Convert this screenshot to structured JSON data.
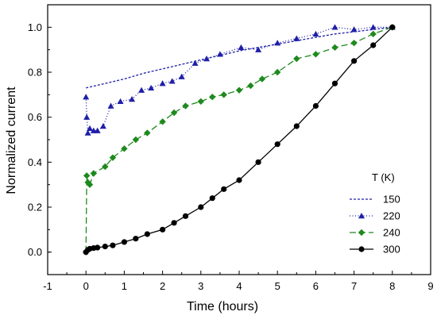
{
  "chart_data": {
    "type": "line",
    "xlabel": "Time (hours)",
    "ylabel": "Normalized current",
    "xlim": [
      -1,
      9
    ],
    "ylim": [
      -0.1,
      1.1
    ],
    "x_ticks": [
      -1,
      0,
      1,
      2,
      3,
      4,
      5,
      6,
      7,
      8,
      9
    ],
    "y_ticks": [
      0.0,
      0.2,
      0.4,
      0.6,
      0.8,
      1.0
    ],
    "y_tick_labels": [
      "0.0",
      "0.2",
      "0.4",
      "0.6",
      "0.8",
      "1.0"
    ],
    "legend_title": "T (K)",
    "legend_position": "lower-right",
    "grid": false,
    "series": [
      {
        "name": "150",
        "color": "#1f1fa8",
        "marker": "none",
        "line_style": "short-dash",
        "x": [
          0,
          0.5,
          1,
          1.5,
          2,
          2.5,
          3,
          3.5,
          4,
          4.5,
          5,
          5.5,
          6,
          6.5,
          7,
          7.5,
          8
        ],
        "y": [
          0.73,
          0.75,
          0.77,
          0.795,
          0.815,
          0.835,
          0.855,
          0.875,
          0.895,
          0.91,
          0.925,
          0.94,
          0.955,
          0.97,
          0.98,
          0.99,
          1.0
        ]
      },
      {
        "name": "220",
        "color": "#1f1fa8",
        "marker": "triangle",
        "line_style": "dot",
        "x": [
          0,
          0.02,
          0.05,
          0.1,
          0.2,
          0.3,
          0.45,
          0.65,
          0.9,
          1.2,
          1.45,
          1.7,
          2.0,
          2.25,
          2.5,
          2.85,
          3.15,
          3.5,
          4.05,
          4.5,
          5.0,
          5.5,
          6.0,
          6.5,
          7.0,
          7.5,
          8.0
        ],
        "y": [
          0.69,
          0.6,
          0.53,
          0.55,
          0.54,
          0.54,
          0.56,
          0.65,
          0.67,
          0.68,
          0.72,
          0.73,
          0.75,
          0.76,
          0.78,
          0.84,
          0.86,
          0.88,
          0.91,
          0.9,
          0.93,
          0.95,
          0.97,
          1.0,
          0.99,
          1.0,
          1.0
        ]
      },
      {
        "name": "240",
        "color": "#1e8a1e",
        "marker": "diamond",
        "line_style": "dash",
        "x": [
          0,
          0.02,
          0.05,
          0.1,
          0.2,
          0.5,
          0.7,
          1.0,
          1.3,
          1.6,
          2.0,
          2.3,
          2.6,
          3.0,
          3.3,
          3.6,
          4.0,
          4.3,
          4.6,
          5.0,
          5.5,
          6.0,
          6.5,
          7.0,
          7.5,
          8.0
        ],
        "y": [
          0.0,
          0.34,
          0.31,
          0.3,
          0.35,
          0.38,
          0.42,
          0.46,
          0.5,
          0.53,
          0.58,
          0.62,
          0.65,
          0.67,
          0.69,
          0.7,
          0.72,
          0.74,
          0.77,
          0.8,
          0.86,
          0.88,
          0.91,
          0.93,
          0.97,
          1.0
        ]
      },
      {
        "name": "300",
        "color": "#000000",
        "marker": "circle",
        "line_style": "solid",
        "x": [
          0,
          0.05,
          0.1,
          0.2,
          0.3,
          0.5,
          0.7,
          1.0,
          1.3,
          1.6,
          2.0,
          2.3,
          2.6,
          3.0,
          3.3,
          3.6,
          4.0,
          4.5,
          5.0,
          5.5,
          6.0,
          6.5,
          7.0,
          7.5,
          8.0
        ],
        "y": [
          0.0,
          0.01,
          0.015,
          0.018,
          0.02,
          0.025,
          0.03,
          0.045,
          0.06,
          0.08,
          0.1,
          0.13,
          0.16,
          0.2,
          0.24,
          0.28,
          0.32,
          0.4,
          0.48,
          0.56,
          0.65,
          0.75,
          0.85,
          0.92,
          1.0
        ]
      }
    ]
  }
}
